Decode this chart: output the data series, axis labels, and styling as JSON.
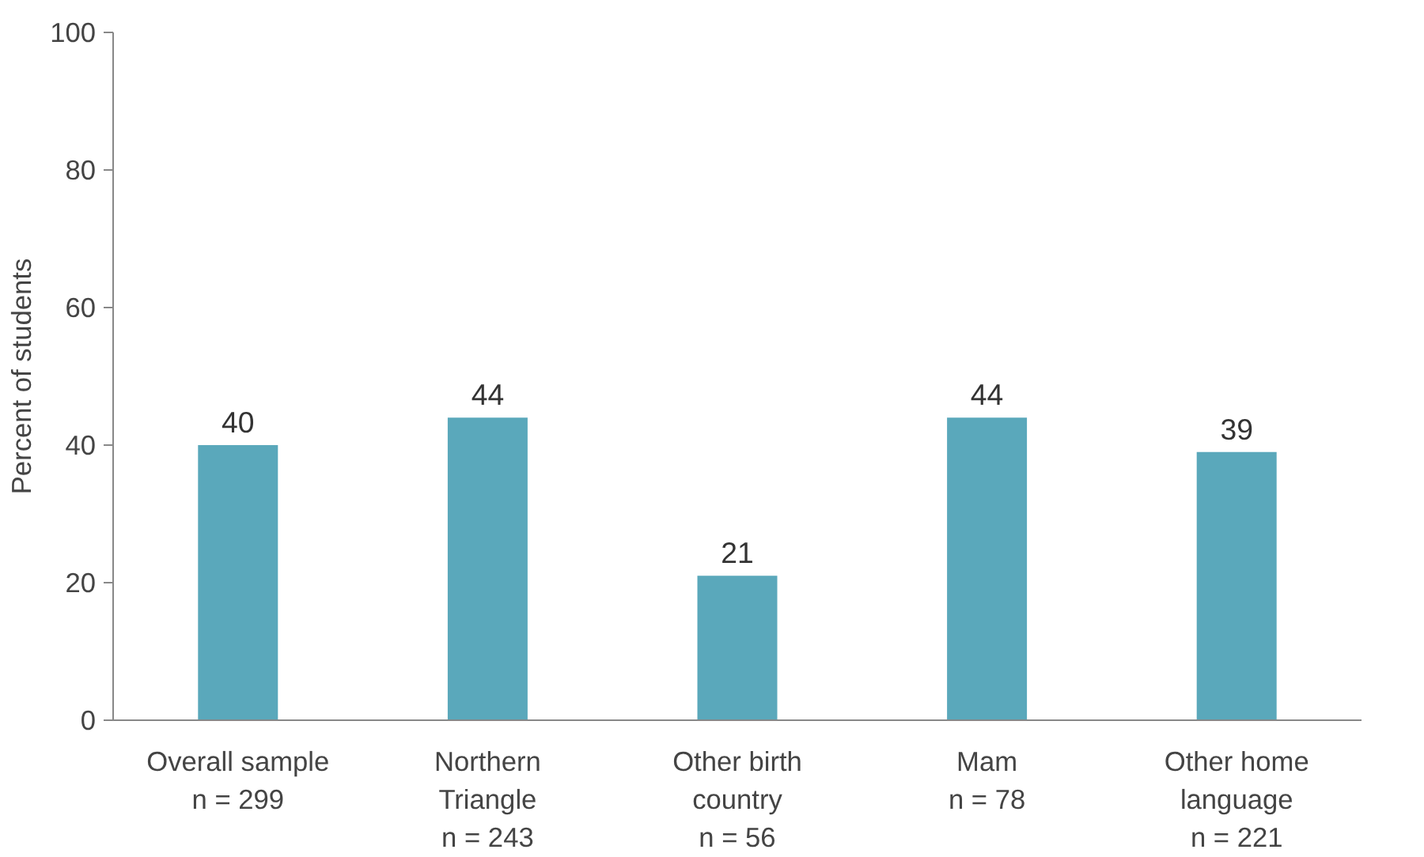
{
  "chart_data": {
    "type": "bar",
    "ylabel": "Percent of students",
    "categories": [
      "Overall sample\nn = 299",
      "Northern\nTriangle\nn = 243",
      "Other birth\ncountry\nn = 56",
      "Mam\nn = 78",
      "Other home\nlanguage\nn = 221"
    ],
    "values": [
      40,
      44,
      21,
      44,
      39
    ],
    "color": "#5aa8bb",
    "ylim": [
      0,
      100
    ],
    "yticks": [
      0,
      20,
      40,
      60,
      80,
      100
    ],
    "grid": false,
    "data_labels": true
  }
}
